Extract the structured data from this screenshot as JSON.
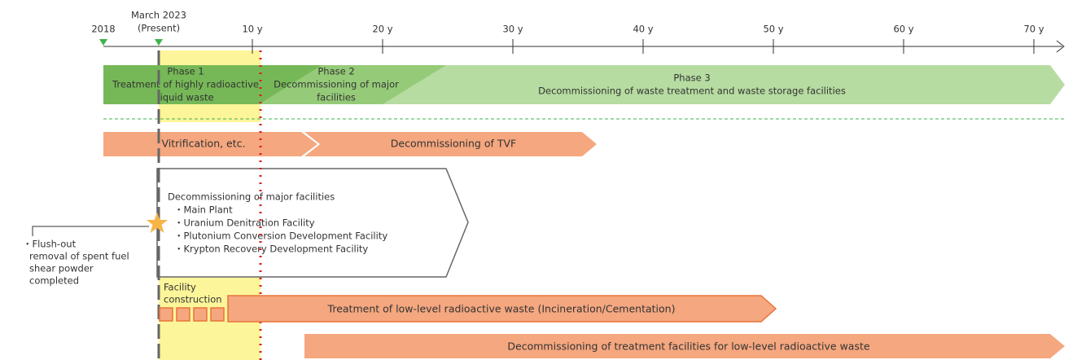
{
  "timeline": {
    "start": "2018",
    "present": [
      "March 2023",
      "(Present)"
    ],
    "ticks": [
      "10 y",
      "20 y",
      "30 y",
      "40 y",
      "50 y",
      "60 y",
      "70 y"
    ]
  },
  "phases": [
    {
      "label": "Phase 1",
      "description": [
        "Treatment of highly radioactive",
        "liquid waste"
      ]
    },
    {
      "label": "Phase 2",
      "description": [
        "Decommissioning of major",
        "facilities"
      ]
    },
    {
      "label": "Phase 3",
      "description": [
        "Decommissioning of waste treatment and waste storage facilities"
      ]
    }
  ],
  "vitrification": [
    "Vitrification, etc.",
    "Decommissioning of TVF"
  ],
  "major_facilities": {
    "title": "Decommissioning of major facilities",
    "items": [
      "・Main Plant",
      "・Uranium Denitration Facility",
      "・Plutonium Conversion Development Facility",
      "・Krypton Recovery Development Facility"
    ]
  },
  "note": [
    "・Flush-out",
    "removal of spent fuel",
    "shear powder",
    "completed"
  ],
  "facility_construction": [
    "Facility",
    "construction"
  ],
  "low_level_treatment": "Treatment of low-level radioactive waste (Incineration/Cementation)",
  "low_level_decommissioning": "Decommissioning of treatment facilities for low-level radioactive waste"
}
